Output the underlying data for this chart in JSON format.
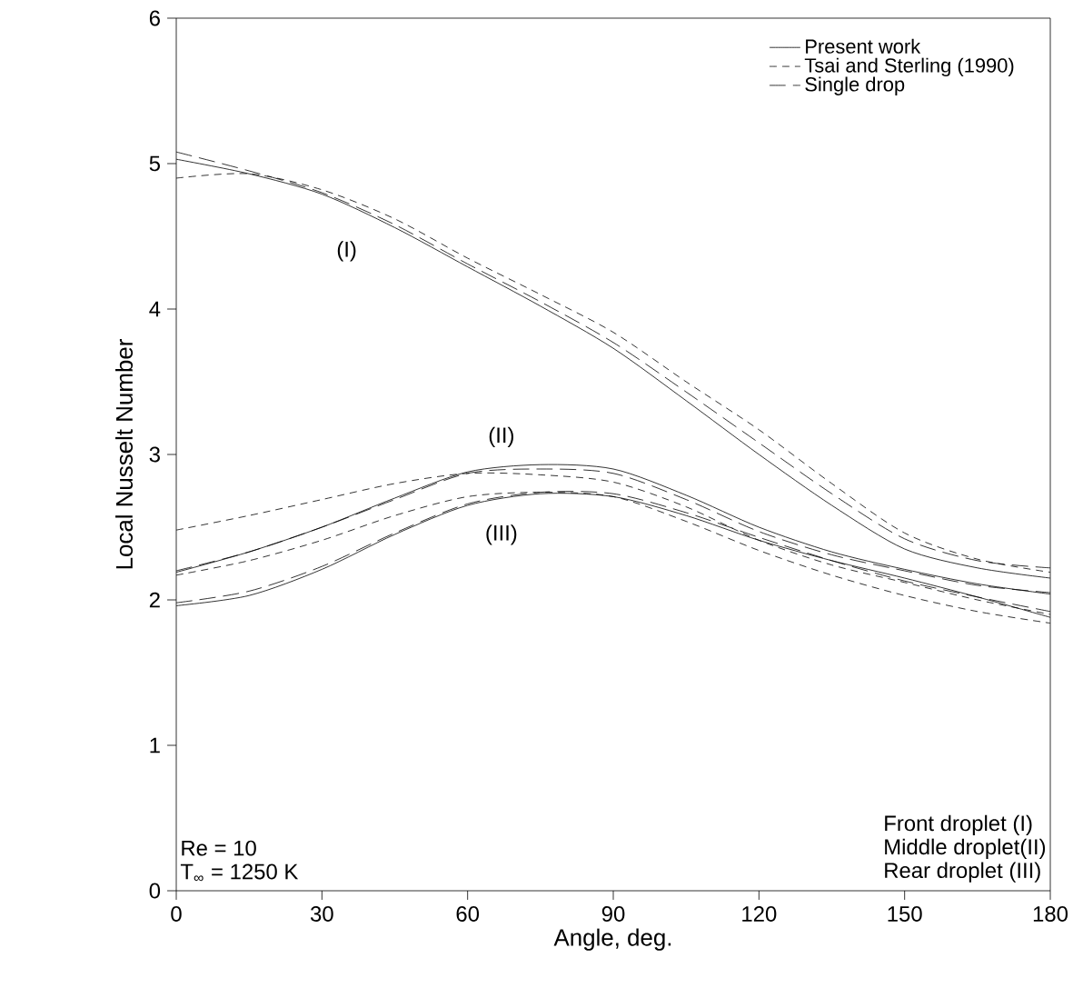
{
  "chart_data": {
    "type": "line",
    "xlabel": "Angle, deg.",
    "ylabel": "Local Nusselt Number",
    "x": [
      0,
      15,
      30,
      45,
      60,
      75,
      90,
      105,
      120,
      135,
      150,
      165,
      180
    ],
    "xlim": [
      0,
      180
    ],
    "ylim": [
      0,
      6
    ],
    "xticks": [
      0,
      30,
      60,
      90,
      120,
      150,
      180
    ],
    "yticks": [
      0,
      1,
      2,
      3,
      4,
      5,
      6
    ],
    "grid": false,
    "legend": "top right",
    "marker": "none",
    "series": [
      {
        "name": "Present work",
        "color": "#000000",
        "line_style": "solid",
        "values": [
          5.03,
          4.93,
          4.79,
          4.56,
          4.29,
          4.02,
          3.73,
          3.37,
          3.0,
          2.65,
          2.35,
          2.22,
          2.15
        ]
      },
      {
        "name": "Tsai and Sterling (1990)",
        "color": "#000000",
        "line_style": "dashed",
        "values": [
          4.9,
          4.93,
          4.82,
          4.62,
          4.35,
          4.1,
          3.84,
          3.5,
          3.17,
          2.8,
          2.46,
          2.28,
          2.19
        ]
      },
      {
        "name": "Single drop",
        "color": "#000000",
        "line_style": "long dashed",
        "values": [
          5.08,
          4.95,
          4.8,
          4.58,
          4.31,
          4.05,
          3.77,
          3.43,
          3.08,
          2.73,
          2.42,
          2.27,
          2.22
        ]
      },
      {
        "color": "#000000",
        "line_style": "solid",
        "values": [
          2.19,
          2.33,
          2.5,
          2.7,
          2.88,
          2.93,
          2.9,
          2.72,
          2.5,
          2.33,
          2.21,
          2.11,
          2.04
        ]
      },
      {
        "color": "#000000",
        "line_style": "dashed",
        "values": [
          2.48,
          2.58,
          2.69,
          2.8,
          2.87,
          2.86,
          2.81,
          2.64,
          2.41,
          2.24,
          2.12,
          2.0,
          1.9
        ]
      },
      {
        "color": "#000000",
        "line_style": "long dashed",
        "values": [
          2.2,
          2.33,
          2.5,
          2.69,
          2.87,
          2.9,
          2.87,
          2.69,
          2.47,
          2.31,
          2.2,
          2.1,
          2.05
        ]
      },
      {
        "color": "#000000",
        "line_style": "solid",
        "values": [
          1.96,
          2.03,
          2.21,
          2.45,
          2.65,
          2.73,
          2.71,
          2.58,
          2.41,
          2.27,
          2.15,
          2.02,
          1.88
        ]
      },
      {
        "color": "#000000",
        "line_style": "dashed",
        "values": [
          2.17,
          2.27,
          2.41,
          2.58,
          2.71,
          2.74,
          2.71,
          2.54,
          2.34,
          2.17,
          2.03,
          1.92,
          1.84
        ]
      },
      {
        "color": "#000000",
        "line_style": "long dashed",
        "values": [
          1.98,
          2.06,
          2.23,
          2.46,
          2.66,
          2.74,
          2.73,
          2.6,
          2.43,
          2.27,
          2.13,
          2.02,
          1.92
        ]
      }
    ],
    "annotations": [
      "(I)",
      "(II)",
      "(III)",
      "Re = 10",
      "T$_{∞}$ = 1250 K",
      "Front droplet (I)",
      "Middle droplet(II)",
      "Rear droplet (III)"
    ]
  }
}
